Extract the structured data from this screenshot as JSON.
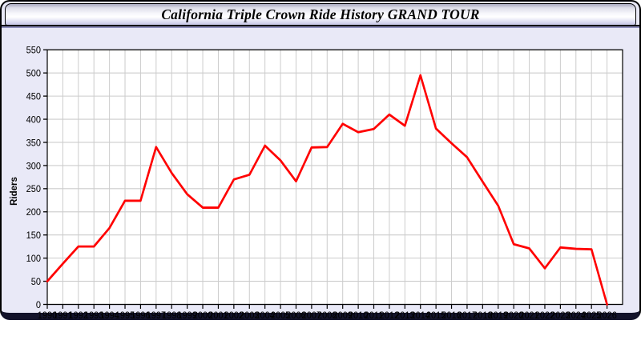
{
  "window": {
    "title": "California Triple Crown Ride History GRAND TOUR"
  },
  "colors": {
    "series_red": "#ff0000",
    "window_background": "#e9e9f7",
    "plot_background": "#ffffff",
    "grid_line": "#cccccc",
    "frame_border": "#000000",
    "titlebar_gradient_top": "#a6a6bb",
    "titlebar_gradient_bottom": "#c3c3e4"
  },
  "chart_data": {
    "type": "line",
    "title": "California Triple Crown Ride History GRAND TOUR",
    "xlabel": "",
    "ylabel": "Riders",
    "x": [
      1990,
      1991,
      1992,
      1993,
      1994,
      1995,
      1996,
      1997,
      1998,
      1999,
      2000,
      2001,
      2002,
      2003,
      2004,
      2005,
      2006,
      2007,
      2008,
      2009,
      2010,
      2011,
      2012,
      2013,
      2014,
      2015,
      2016,
      2017,
      2018,
      2019,
      2020,
      2021,
      2022,
      2023,
      2024,
      2025,
      2026
    ],
    "series": [
      {
        "name": "Riders",
        "color": "#ff0000",
        "values": [
          50,
          88,
          125,
          125,
          165,
          224,
          224,
          340,
          284,
          238,
          209,
          209,
          270,
          280,
          343,
          311,
          266,
          339,
          340,
          390,
          372,
          379,
          410,
          386,
          495,
          380,
          348,
          318,
          265,
          213,
          130,
          121,
          78,
          123,
          120,
          119,
          0
        ]
      }
    ],
    "ylim": [
      0,
      550
    ],
    "yticks": [
      0,
      50,
      100,
      150,
      200,
      250,
      300,
      350,
      400,
      450,
      500,
      550
    ],
    "xlim": [
      1990,
      2027
    ],
    "grid": true,
    "grid_color": "#cccccc",
    "plot_bg": "#ffffff",
    "legend_position": "none"
  }
}
